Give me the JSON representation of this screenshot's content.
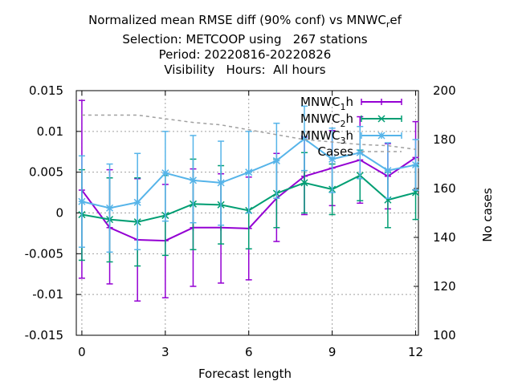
{
  "chart_data": {
    "type": "line",
    "title_lines": [
      "Normalized mean RMSE diff (90% conf) vs MNWC_ref",
      "Selection: METCOOP using   267 stations",
      "Period: 20220816-20220826",
      "Visibility   Hours:  All hours"
    ],
    "xlabel": "Forecast length",
    "ylabel": "",
    "y2label": "No cases",
    "xlim": [
      -0.2,
      12.1
    ],
    "ylim": [
      -0.015,
      0.015
    ],
    "y2lim": [
      100,
      200
    ],
    "xticks": [
      0,
      3,
      6,
      9,
      12
    ],
    "yticks": [
      -0.015,
      -0.01,
      -0.005,
      0,
      0.005,
      0.01,
      0.015
    ],
    "ytick_labels": [
      "-0.015",
      "-0.01",
      "-0.005",
      "0",
      "0.005",
      "0.01",
      "0.015"
    ],
    "y2ticks": [
      100,
      120,
      140,
      160,
      180,
      200
    ],
    "grid": true,
    "legend_position": "top-right",
    "series": [
      {
        "name": "MNWC_1h",
        "legend_main": "MNWC",
        "legend_sub": "1",
        "legend_tail": "h",
        "color": "#9400d3",
        "marker": "plus",
        "x": [
          0,
          1,
          2,
          3,
          4,
          5,
          6,
          7,
          8,
          9,
          10,
          11,
          12
        ],
        "y": [
          0.0028,
          -0.0018,
          -0.0033,
          -0.0034,
          -0.0018,
          -0.0018,
          -0.0019,
          0.0018,
          0.0045,
          0.0055,
          0.0065,
          0.0045,
          0.0068
        ],
        "err_low": [
          -0.008,
          -0.0087,
          -0.0108,
          -0.0104,
          -0.009,
          -0.0086,
          -0.0082,
          -0.0035,
          -0.0002,
          0.0009,
          0.0012,
          0.0005,
          0.0028
        ],
        "err_high": [
          0.0138,
          0.0053,
          0.0042,
          0.0035,
          0.0054,
          0.0048,
          0.0044,
          0.0073,
          0.0093,
          0.0101,
          0.0118,
          0.0085,
          0.0112
        ]
      },
      {
        "name": "MNWC_2h",
        "legend_main": "MNWC",
        "legend_sub": "2",
        "legend_tail": "h",
        "color": "#009e73",
        "marker": "cross",
        "x": [
          0,
          1,
          2,
          3,
          4,
          5,
          6,
          7,
          8,
          9,
          10,
          11,
          12
        ],
        "y": [
          -0.0002,
          -0.0008,
          -0.0011,
          -0.0003,
          0.0011,
          0.001,
          0.0003,
          0.0024,
          0.0037,
          0.0029,
          0.0046,
          0.0016,
          0.0025
        ],
        "err_low": [
          -0.0058,
          -0.006,
          -0.0065,
          -0.0052,
          -0.0045,
          -0.0038,
          -0.0044,
          -0.0018,
          0.0,
          -0.0002,
          0.0015,
          -0.0018,
          -0.0008
        ],
        "err_high": [
          0.0053,
          0.0043,
          0.0043,
          0.0046,
          0.0066,
          0.0058,
          0.005,
          0.0066,
          0.0074,
          0.006,
          0.0077,
          0.005,
          0.0058
        ]
      },
      {
        "name": "MNWC_3h",
        "legend_main": "MNWC",
        "legend_sub": "3",
        "legend_tail": "h",
        "color": "#56b4e9",
        "marker": "star",
        "x": [
          0,
          1,
          2,
          3,
          4,
          5,
          6,
          7,
          8,
          9,
          10,
          11,
          12
        ],
        "y": [
          0.0014,
          0.0006,
          0.0013,
          0.0049,
          0.004,
          0.0037,
          0.005,
          0.0064,
          0.0091,
          0.0066,
          0.0074,
          0.0052,
          0.0059
        ],
        "err_low": [
          -0.0042,
          -0.0048,
          -0.0045,
          -0.001,
          -0.0012,
          -0.0015,
          0.0,
          0.0018,
          0.0052,
          0.0025,
          0.0042,
          0.0018,
          0.0028
        ],
        "err_high": [
          0.007,
          0.006,
          0.0073,
          0.01,
          0.0095,
          0.0088,
          0.01,
          0.011,
          0.0131,
          0.0104,
          0.0106,
          0.0086,
          0.009
        ]
      },
      {
        "name": "Cases",
        "legend_main": "Cases",
        "color": "#a0a0a0",
        "dashed": true,
        "axis": "y2",
        "x": [
          0,
          1,
          2,
          3,
          4,
          5,
          6,
          7,
          8,
          9,
          10,
          11,
          12
        ],
        "y": [
          190,
          190,
          190,
          188.5,
          187,
          186,
          184,
          182,
          180,
          179,
          178,
          177.5,
          176
        ]
      }
    ]
  }
}
